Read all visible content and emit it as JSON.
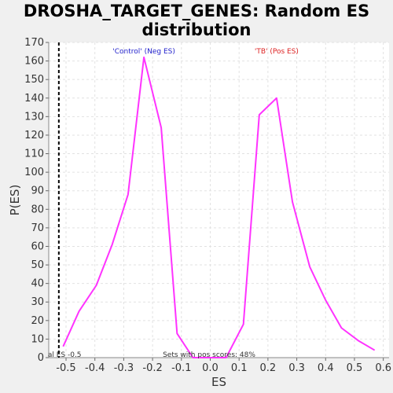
{
  "title_line1": "DROSHA_TARGET_GENES: Random ES",
  "title_line2": "distribution",
  "chart_data": {
    "type": "line",
    "title": "DROSHA_TARGET_GENES: Random ES distribution",
    "xlabel": "ES",
    "ylabel": "P(ES)",
    "xlim": [
      -0.56,
      0.62
    ],
    "ylim": [
      0,
      170
    ],
    "x_ticks": [
      "-0.5",
      "-0.4",
      "-0.3",
      "-0.2",
      "-0.1",
      "0.0",
      "0.1",
      "0.2",
      "0.3",
      "0.4",
      "0.5",
      "0.6"
    ],
    "y_ticks": [
      "0",
      "10",
      "20",
      "30",
      "40",
      "50",
      "60",
      "70",
      "80",
      "90",
      "100",
      "110",
      "120",
      "130",
      "140",
      "150",
      "160",
      "170"
    ],
    "grid": true,
    "series": [
      {
        "color": "#ff33ff",
        "x": [
          -0.51,
          -0.455,
          -0.395,
          -0.34,
          -0.285,
          -0.23,
          -0.17,
          -0.115,
          -0.06,
          -0.005,
          0.055,
          0.115,
          0.17,
          0.23,
          0.285,
          0.345,
          0.4,
          0.455,
          0.515,
          0.57
        ],
        "y": [
          6,
          25,
          39,
          61,
          88,
          162,
          124,
          13,
          0,
          0,
          0,
          18,
          131,
          140,
          84,
          49,
          31,
          16,
          9,
          4
        ]
      }
    ],
    "marker_line": {
      "x": -0.525,
      "label": "al ES -0.5"
    },
    "annotations": {
      "neg": {
        "text": "'Control' (Neg ES)",
        "color": "#2222cc"
      },
      "pos": {
        "text": "'TB' (Pos ES)",
        "color": "#dd2222"
      },
      "note": "Sets with pos scores: 48%"
    }
  }
}
